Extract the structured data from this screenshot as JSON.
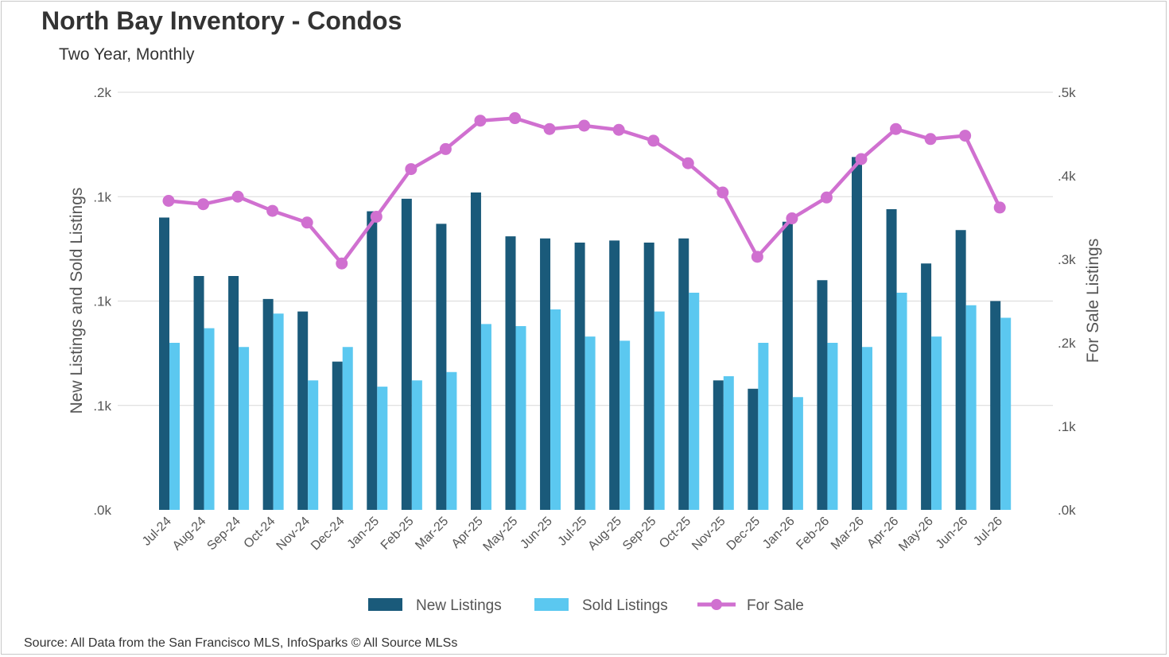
{
  "title": "North Bay Inventory - Condos",
  "subtitle": "Two Year, Monthly",
  "source": "Source: All Data from the San Francisco MLS, InfoSparks © All Source MLSs",
  "colors": {
    "new_listings": "#1a5a7a",
    "sold_listings": "#5bc8f0",
    "for_sale": "#d070d0",
    "grid": "#d9d9d9",
    "axis_text": "#555555"
  },
  "chart_data": {
    "type": "bar",
    "x_tick_labels": [
      "Jul-24",
      "Aug-24",
      "Sep-24",
      "Oct-24",
      "Nov-24",
      "Dec-24",
      "Jan-25",
      "Feb-25",
      "Mar-25",
      "Apr-25",
      "May-25",
      "Jun-25",
      "Jul-25",
      "Aug-25",
      "Sep-25",
      "Oct-25",
      "Nov-25",
      "Dec-25",
      "Jan-26",
      "Feb-26",
      "Mar-26",
      "Apr-26",
      "May-26",
      "Jun-26",
      "Jul-26"
    ],
    "ylabel": "New Listings and Sold Listings",
    "y2label": "For Sale Listings",
    "ylim": [
      0,
      200
    ],
    "y2lim": [
      0,
      500
    ],
    "y_tick_labels": [
      ".0k",
      ".1k",
      ".1k",
      ".1k",
      ".2k"
    ],
    "y2_tick_labels": [
      ".0k",
      ".1k",
      ".2k",
      ".3k",
      ".4k",
      ".5k"
    ],
    "grid": true,
    "legend_position": "bottom",
    "series": [
      {
        "name": "New Listings",
        "type": "bar",
        "values": [
          140,
          112,
          112,
          101,
          95,
          71,
          143,
          149,
          137,
          152,
          131,
          130,
          128,
          129,
          128,
          130,
          62,
          58,
          138,
          110,
          169,
          144,
          118,
          134,
          100
        ]
      },
      {
        "name": "Sold Listings",
        "type": "bar",
        "values": [
          80,
          87,
          78,
          94,
          62,
          78,
          59,
          62,
          66,
          89,
          88,
          96,
          83,
          81,
          95,
          104,
          64,
          80,
          54,
          80,
          78,
          104,
          83,
          98,
          92
        ]
      },
      {
        "name": "For Sale",
        "type": "line",
        "values": [
          370,
          366,
          375,
          358,
          344,
          295,
          351,
          408,
          432,
          466,
          469,
          456,
          460,
          455,
          442,
          415,
          380,
          303,
          349,
          374,
          420,
          456,
          444,
          448,
          362
        ]
      }
    ]
  }
}
